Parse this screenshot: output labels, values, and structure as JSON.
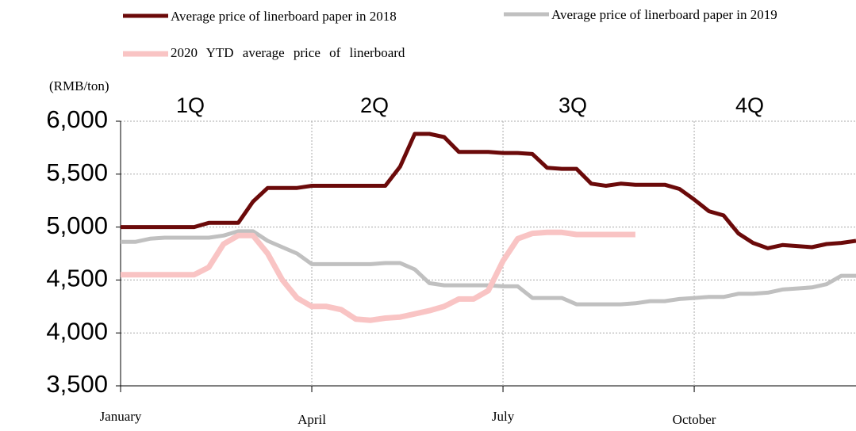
{
  "chart_data": {
    "type": "line",
    "unit_label": "(RMB/ton)",
    "annotations": [
      "1Q",
      "2Q",
      "3Q",
      "4Q"
    ],
    "categories": [
      "January",
      null,
      null,
      null,
      null,
      null,
      null,
      null,
      null,
      null,
      null,
      null,
      null,
      "April",
      null,
      null,
      null,
      null,
      null,
      null,
      null,
      null,
      null,
      null,
      null,
      null,
      "July",
      null,
      null,
      null,
      null,
      null,
      null,
      null,
      null,
      null,
      null,
      null,
      null,
      "October",
      null,
      null,
      null,
      null,
      null,
      null,
      null,
      null,
      null,
      null,
      null
    ],
    "series": [
      {
        "name": "Average price of linerboard paper in 2018",
        "color": "#6b0a0a",
        "values": [
          5000,
          5000,
          5000,
          5000,
          5000,
          5000,
          5040,
          5040,
          5040,
          5240,
          5370,
          5370,
          5370,
          5390,
          5390,
          5390,
          5390,
          5390,
          5390,
          5570,
          5880,
          5880,
          5850,
          5710,
          5710,
          5710,
          5700,
          5700,
          5690,
          5560,
          5550,
          5550,
          5410,
          5390,
          5410,
          5400,
          5400,
          5400,
          5360,
          5260,
          5150,
          5110,
          4940,
          4850,
          4800,
          4830,
          4820,
          4810,
          4840,
          4850,
          4870
        ]
      },
      {
        "name": "Average price of linerboard paper in 2019",
        "color": "#c0c0c0",
        "values": [
          4860,
          4860,
          4890,
          4900,
          4900,
          4900,
          4900,
          4920,
          4960,
          4960,
          4870,
          4810,
          4750,
          4650,
          4650,
          4650,
          4650,
          4650,
          4660,
          4660,
          4600,
          4470,
          4450,
          4450,
          4450,
          4450,
          4440,
          4440,
          4330,
          4330,
          4330,
          4270,
          4270,
          4270,
          4270,
          4280,
          4300,
          4300,
          4320,
          4330,
          4340,
          4340,
          4370,
          4370,
          4380,
          4410,
          4420,
          4430,
          4460,
          4540,
          4540
        ]
      },
      {
        "name": "2020 YTD average price of linerboard",
        "color": "#f9c4c4",
        "values": [
          4550,
          4550,
          4550,
          4550,
          4550,
          4550,
          4620,
          4840,
          4920,
          4920,
          4750,
          4500,
          4330,
          4250,
          4250,
          4220,
          4130,
          4120,
          4140,
          4150,
          4180,
          4210,
          4250,
          4320,
          4320,
          4400,
          4680,
          4890,
          4940,
          4950,
          4950,
          4930,
          4930,
          4930,
          4930,
          4930,
          null,
          null,
          null,
          null,
          null,
          null,
          null,
          null,
          null,
          null,
          null,
          null,
          null,
          null,
          null
        ]
      }
    ],
    "ylim": [
      3500,
      6000
    ],
    "yticks": [
      {
        "value": 3500,
        "label": "3,500"
      },
      {
        "value": 4000,
        "label": "4,000"
      },
      {
        "value": 4500,
        "label": "4,500"
      },
      {
        "value": 5000,
        "label": "5,000"
      },
      {
        "value": 5500,
        "label": "5,500"
      },
      {
        "value": 6000,
        "label": "6,000"
      }
    ],
    "grid": true
  }
}
